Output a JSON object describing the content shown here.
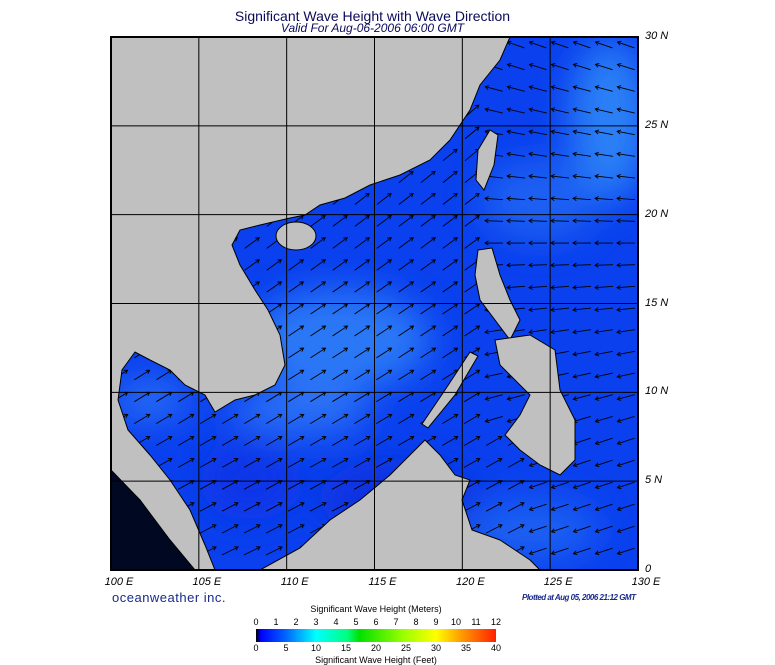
{
  "title": "Significant Wave Height with Wave Direction",
  "subtitle": "Valid For Aug-06-2006 06:00 GMT",
  "map": {
    "region": "South China Sea",
    "lon_labels": [
      "100 E",
      "105 E",
      "110 E",
      "115 E",
      "120 E",
      "125 E",
      "130 E"
    ],
    "lat_labels": [
      "0",
      "5 N",
      "10 N",
      "15 N",
      "20 N",
      "25 N",
      "30 N"
    ],
    "land_color": "#c0c0c0",
    "ocean_color": "#1050f0",
    "grid": true,
    "vectors": "wave direction arrows"
  },
  "brand": "oceanweather inc.",
  "plotted": "Plotted at Aug 05, 2006 21:12 GMT",
  "colorbar": {
    "title_meters": "Significant Wave Height (Meters)",
    "title_feet": "Significant Wave Height (Feet)",
    "meters_ticks": [
      "0",
      "1",
      "2",
      "3",
      "4",
      "5",
      "6",
      "7",
      "8",
      "9",
      "10",
      "11",
      "12"
    ],
    "feet_ticks": [
      "0",
      "5",
      "10",
      "15",
      "20",
      "25",
      "30",
      "35",
      "40"
    ],
    "colors": [
      "#000000",
      "#0000ff",
      "#00ffff",
      "#00e000",
      "#ffff00",
      "#ff2000"
    ]
  }
}
